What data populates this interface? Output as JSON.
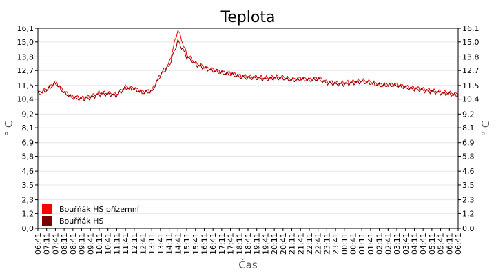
{
  "chart_data": {
    "type": "line",
    "title": "Teplota",
    "xlabel": "Čas",
    "ylabel": "° C",
    "ylabel_right": "° C",
    "ylim": [
      0,
      16.1
    ],
    "yticks": [
      "0,0",
      "1,2",
      "2,3",
      "3,5",
      "4,6",
      "5,8",
      "6,9",
      "8,1",
      "9,2",
      "10,4",
      "11,5",
      "12,7",
      "13,8",
      "15,0",
      "16,1"
    ],
    "categories": [
      "06:41",
      "07:11",
      "07:41",
      "08:11",
      "08:41",
      "09:11",
      "09:41",
      "10:11",
      "10:41",
      "11:11",
      "11:41",
      "12:11",
      "12:41",
      "13:11",
      "13:41",
      "14:11",
      "14:41",
      "15:11",
      "15:41",
      "16:11",
      "16:41",
      "17:11",
      "17:41",
      "18:11",
      "18:41",
      "19:11",
      "19:41",
      "20:11",
      "20:41",
      "21:11",
      "21:41",
      "22:11",
      "22:41",
      "23:11",
      "23:41",
      "00:11",
      "00:41",
      "01:11",
      "01:41",
      "02:11",
      "02:41",
      "03:11",
      "03:41",
      "04:11",
      "04:41",
      "05:11",
      "05:41",
      "06:11",
      "06:41"
    ],
    "grid": true,
    "legend_position": "bottom-left",
    "series": [
      {
        "name": "Bouřňák HS přízemní",
        "color": "#ff0000",
        "values": [
          10.9,
          11.2,
          11.8,
          11.0,
          10.6,
          10.5,
          10.6,
          10.9,
          10.9,
          10.8,
          11.4,
          11.3,
          11.0,
          11.1,
          12.4,
          13.3,
          16.0,
          14.0,
          13.3,
          13.0,
          12.8,
          12.6,
          12.5,
          12.3,
          12.2,
          12.2,
          12.1,
          12.2,
          12.2,
          12.0,
          12.1,
          12.0,
          12.1,
          11.8,
          11.7,
          11.7,
          11.8,
          11.9,
          11.8,
          11.6,
          11.6,
          11.6,
          11.4,
          11.3,
          11.2,
          11.1,
          11.0,
          10.9,
          10.8
        ]
      },
      {
        "name": "Bouřňák HS",
        "color": "#800000",
        "values": [
          10.8,
          11.1,
          11.7,
          10.9,
          10.5,
          10.4,
          10.5,
          10.8,
          10.8,
          10.7,
          11.3,
          11.2,
          10.9,
          11.0,
          12.3,
          13.1,
          15.1,
          13.8,
          13.2,
          12.9,
          12.7,
          12.5,
          12.4,
          12.2,
          12.1,
          12.1,
          12.0,
          12.1,
          12.1,
          11.9,
          12.0,
          11.9,
          12.0,
          11.7,
          11.6,
          11.6,
          11.7,
          11.8,
          11.7,
          11.5,
          11.5,
          11.5,
          11.3,
          11.2,
          11.1,
          11.0,
          10.9,
          10.8,
          10.7
        ]
      }
    ]
  }
}
